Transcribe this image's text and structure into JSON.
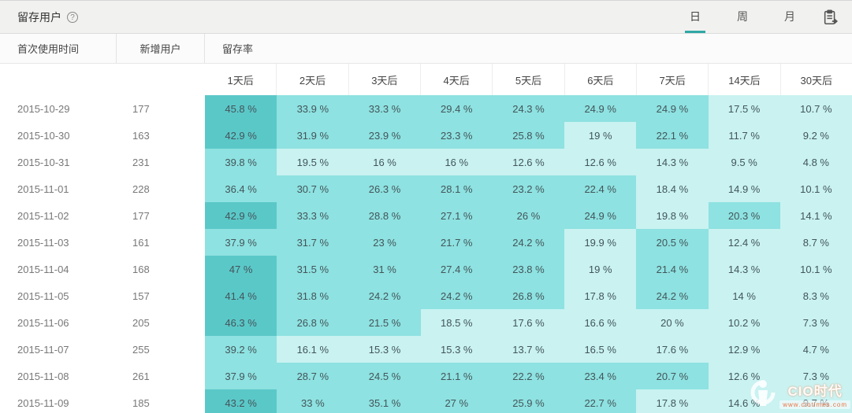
{
  "header": {
    "title": "留存用户",
    "help_icon": "question-circle-icon",
    "tabs": [
      {
        "label": "日",
        "active": true
      },
      {
        "label": "周",
        "active": false
      },
      {
        "label": "月",
        "active": false
      }
    ],
    "export_icon": "export-clipboard-icon"
  },
  "table": {
    "col_headers": {
      "first_use": "首次使用时间",
      "new_users": "新增用户",
      "retention_rate": "留存率"
    },
    "day_headers": [
      "1天后",
      "2天后",
      "3天后",
      "4天后",
      "5天后",
      "6天后",
      "7天后",
      "14天后",
      "30天后"
    ],
    "value_suffix": " %",
    "rows": [
      {
        "date": "2015-10-29",
        "new_users": "177",
        "retention": [
          45.8,
          33.9,
          33.3,
          29.4,
          24.3,
          24.9,
          24.9,
          17.5,
          10.7
        ]
      },
      {
        "date": "2015-10-30",
        "new_users": "163",
        "retention": [
          42.9,
          31.9,
          23.9,
          23.3,
          25.8,
          19,
          22.1,
          11.7,
          9.2
        ]
      },
      {
        "date": "2015-10-31",
        "new_users": "231",
        "retention": [
          39.8,
          19.5,
          16,
          16,
          12.6,
          12.6,
          14.3,
          9.5,
          4.8
        ]
      },
      {
        "date": "2015-11-01",
        "new_users": "228",
        "retention": [
          36.4,
          30.7,
          26.3,
          28.1,
          23.2,
          22.4,
          18.4,
          14.9,
          10.1
        ]
      },
      {
        "date": "2015-11-02",
        "new_users": "177",
        "retention": [
          42.9,
          33.3,
          28.8,
          27.1,
          26,
          24.9,
          19.8,
          20.3,
          14.1
        ]
      },
      {
        "date": "2015-11-03",
        "new_users": "161",
        "retention": [
          37.9,
          31.7,
          23,
          21.7,
          24.2,
          19.9,
          20.5,
          12.4,
          8.7
        ]
      },
      {
        "date": "2015-11-04",
        "new_users": "168",
        "retention": [
          47,
          31.5,
          31,
          27.4,
          23.8,
          19,
          21.4,
          14.3,
          10.1
        ]
      },
      {
        "date": "2015-11-05",
        "new_users": "157",
        "retention": [
          41.4,
          31.8,
          24.2,
          24.2,
          26.8,
          17.8,
          24.2,
          14,
          8.3
        ]
      },
      {
        "date": "2015-11-06",
        "new_users": "205",
        "retention": [
          46.3,
          26.8,
          21.5,
          18.5,
          17.6,
          16.6,
          20,
          10.2,
          7.3
        ]
      },
      {
        "date": "2015-11-07",
        "new_users": "255",
        "retention": [
          39.2,
          16.1,
          15.3,
          15.3,
          13.7,
          16.5,
          17.6,
          12.9,
          4.7
        ]
      },
      {
        "date": "2015-11-08",
        "new_users": "261",
        "retention": [
          37.9,
          28.7,
          24.5,
          21.1,
          22.2,
          23.4,
          20.7,
          12.6,
          7.3
        ]
      },
      {
        "date": "2015-11-09",
        "new_users": "185",
        "retention": [
          43.2,
          33,
          35.1,
          27,
          25.9,
          22.7,
          17.8,
          14.6,
          9.7
        ]
      }
    ]
  },
  "heatmap": {
    "dark": "#5bc8c8",
    "medium": "#8ee2e1",
    "light": "#c9f2f1",
    "dark_threshold": 40,
    "medium_threshold": 20
  },
  "colors": {
    "accent": "#2fa8a5",
    "topbar_bg": "#f1f1f0"
  },
  "watermark": {
    "logo": "cio-logo",
    "text": "CIO时代",
    "url": "www.ciotimes.com"
  }
}
